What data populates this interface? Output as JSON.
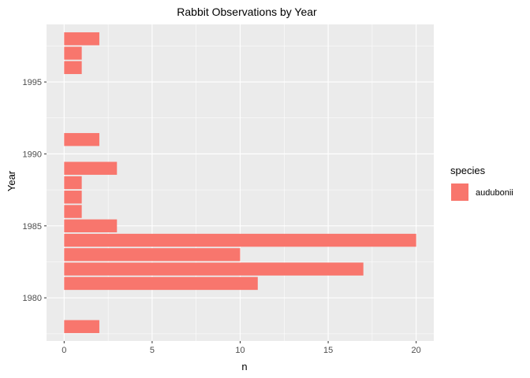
{
  "chart_data": {
    "type": "bar",
    "orientation": "horizontal",
    "title": "Rabbit Observations by Year",
    "xlabel": "n",
    "ylabel": "Year",
    "xlim": [
      -1,
      21
    ],
    "ylim": [
      1977,
      1999
    ],
    "x_ticks": [
      0,
      5,
      10,
      15,
      20
    ],
    "y_ticks": [
      1980,
      1985,
      1990,
      1995
    ],
    "grid": true,
    "legend": {
      "title": "species",
      "placement": "right",
      "entries": [
        "audubonii"
      ]
    },
    "series": [
      {
        "name": "audubonii",
        "color": "#F8766D",
        "points": [
          {
            "year": 1978,
            "n": 2
          },
          {
            "year": 1981,
            "n": 11
          },
          {
            "year": 1982,
            "n": 17
          },
          {
            "year": 1983,
            "n": 10
          },
          {
            "year": 1984,
            "n": 20
          },
          {
            "year": 1985,
            "n": 3
          },
          {
            "year": 1986,
            "n": 1
          },
          {
            "year": 1987,
            "n": 1
          },
          {
            "year": 1988,
            "n": 1
          },
          {
            "year": 1989,
            "n": 3
          },
          {
            "year": 1991,
            "n": 2
          },
          {
            "year": 1996,
            "n": 1
          },
          {
            "year": 1997,
            "n": 1
          },
          {
            "year": 1998,
            "n": 2
          }
        ]
      }
    ]
  },
  "colors": {
    "panel_background": "#EBEBEB",
    "grid_major": "#FFFFFF",
    "tick_text": "#4D4D4D"
  }
}
